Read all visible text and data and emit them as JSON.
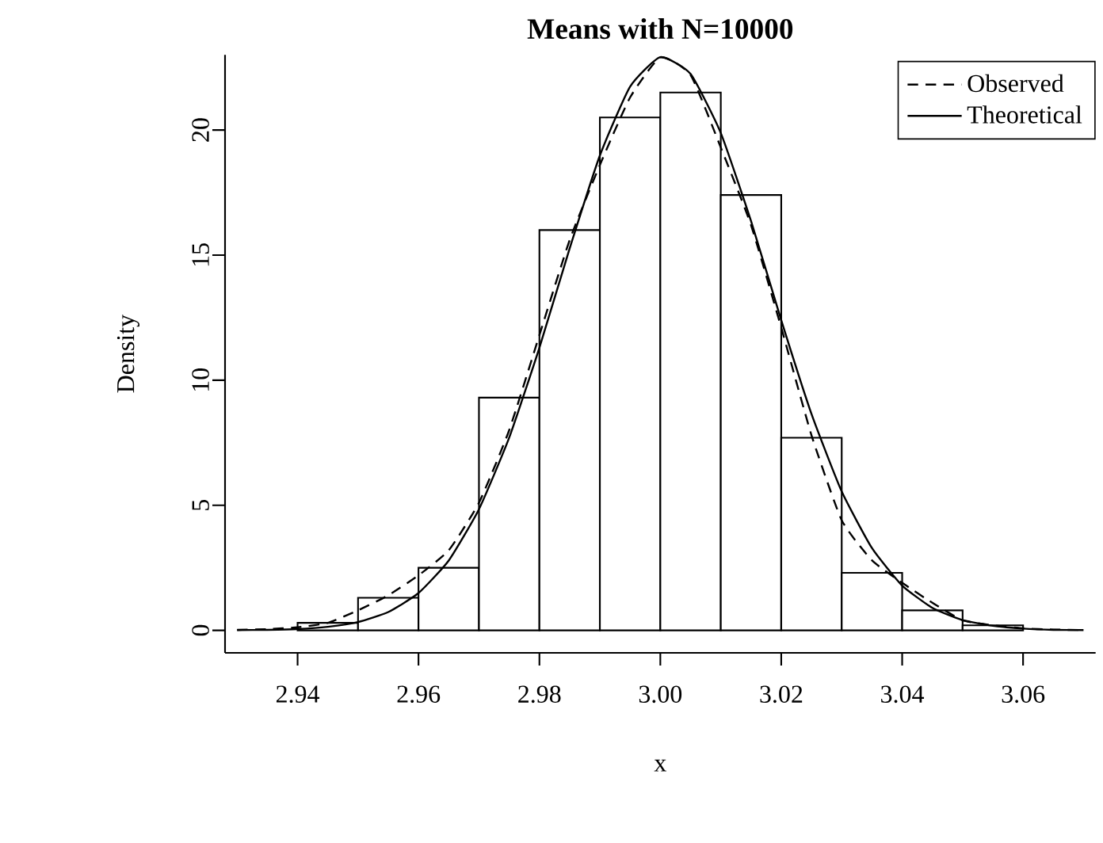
{
  "chart_data": {
    "type": "histogram",
    "title": "Means with N=10000",
    "xlabel": "x",
    "ylabel": "Density",
    "bins": [
      2.94,
      2.95,
      2.96,
      2.97,
      2.98,
      2.99,
      3.0,
      3.01,
      3.02,
      3.03,
      3.04,
      3.05,
      3.06
    ],
    "values": [
      0.3,
      1.3,
      2.5,
      9.3,
      16.0,
      20.5,
      21.5,
      17.4,
      7.7,
      2.3,
      0.8,
      0.2
    ],
    "color": "#000000",
    "series": [
      {
        "name": "Observed",
        "type": "line",
        "line_style": "dashed",
        "color": "#000000",
        "x": [
          2.93,
          2.935,
          2.94,
          2.945,
          2.95,
          2.955,
          2.96,
          2.965,
          2.97,
          2.975,
          2.98,
          2.985,
          2.99,
          2.995,
          3.0,
          3.005,
          3.01,
          3.015,
          3.02,
          3.025,
          3.03,
          3.035,
          3.04,
          3.045,
          3.05,
          3.055,
          3.06,
          3.065,
          3.07
        ],
        "values": [
          0.02,
          0.05,
          0.12,
          0.3,
          0.8,
          1.4,
          2.2,
          3.2,
          5.1,
          8.0,
          11.8,
          15.6,
          18.6,
          21.3,
          22.9,
          22.2,
          19.3,
          16.2,
          12.1,
          7.8,
          4.4,
          2.8,
          1.9,
          1.1,
          0.4,
          0.2,
          0.08,
          0.03,
          0.01
        ]
      },
      {
        "name": "Theoretical",
        "type": "line",
        "line_style": "solid",
        "color": "#000000",
        "x": [
          2.93,
          2.935,
          2.94,
          2.945,
          2.95,
          2.955,
          2.96,
          2.965,
          2.97,
          2.975,
          2.98,
          2.985,
          2.99,
          2.995,
          3.0,
          3.005,
          3.01,
          3.015,
          3.02,
          3.025,
          3.03,
          3.035,
          3.04,
          3.045,
          3.05,
          3.055,
          3.06,
          3.065,
          3.07
        ],
        "values": [
          0.01,
          0.02,
          0.05,
          0.14,
          0.33,
          0.73,
          1.49,
          2.79,
          4.84,
          7.7,
          11.3,
          15.26,
          18.98,
          21.73,
          22.91,
          22.24,
          19.88,
          16.36,
          12.4,
          8.65,
          5.55,
          3.29,
          1.79,
          0.9,
          0.41,
          0.18,
          0.07,
          0.02,
          0.01
        ]
      }
    ],
    "xlim": [
      2.928,
      3.072
    ],
    "ylim": [
      -0.9,
      23.0
    ],
    "xticks": [
      {
        "value": 2.94,
        "label": "2.94"
      },
      {
        "value": 2.96,
        "label": "2.96"
      },
      {
        "value": 2.98,
        "label": "2.98"
      },
      {
        "value": 3.0,
        "label": "3.00"
      },
      {
        "value": 3.02,
        "label": "3.02"
      },
      {
        "value": 3.04,
        "label": "3.04"
      },
      {
        "value": 3.06,
        "label": "3.06"
      }
    ],
    "yticks": [
      0,
      5,
      10,
      15,
      20
    ],
    "legend": "top right"
  }
}
